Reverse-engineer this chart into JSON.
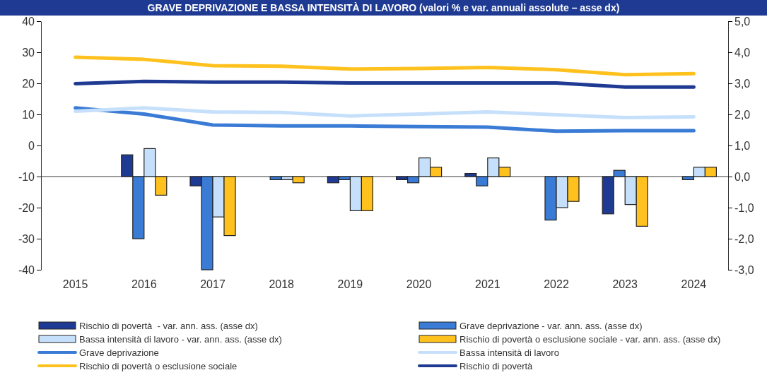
{
  "chart_data": {
    "type": "bar",
    "title": "GRAVE DEPRIVAZIONE E BASSA INTENSITÀ DI LAVORO (valori % e var. annuali assolute – asse dx)",
    "categories": [
      "2015",
      "2016",
      "2017",
      "2018",
      "2019",
      "2020",
      "2021",
      "2022",
      "2023",
      "2024"
    ],
    "series": [
      {
        "name": "Rischio di povertà  - var. ann. ass. (asse dx)",
        "axis": "y2",
        "color": "#1f3a93",
        "values": [
          null,
          0.7,
          -0.3,
          0,
          -0.2,
          -0.1,
          0.1,
          0,
          -1.2,
          0
        ]
      },
      {
        "name": "Grave deprivazione - var. ann. ass. (asse dx)",
        "axis": "y2",
        "color": "#3a7bd5",
        "values": [
          null,
          -2.0,
          -3.0,
          -0.1,
          -0.1,
          -0.2,
          -0.3,
          -1.4,
          0.2,
          -0.1
        ]
      },
      {
        "name": "Bassa intensità di lavoro - var. ann. ass. (asse dx)",
        "axis": "y2",
        "color": "#c6e0fb",
        "values": [
          null,
          0.9,
          -1.3,
          -0.1,
          -1.1,
          0.6,
          0.6,
          -1.0,
          -0.9,
          0.3
        ]
      },
      {
        "name": "Rischio di povertà o esclusione sociale - var. ann. ass. (asse dx)",
        "axis": "y2",
        "color": "#ffc11e",
        "values": [
          null,
          -0.6,
          -1.9,
          -0.2,
          -1.1,
          0.3,
          0.3,
          -0.8,
          -1.6,
          0.3
        ]
      },
      {
        "name": "Grave deprivazione",
        "type": "line",
        "color": "#3a7bd5",
        "values": [
          12.1,
          10.1,
          6.6,
          6.3,
          6.3,
          6.1,
          5.9,
          4.6,
          4.8,
          4.8
        ]
      },
      {
        "name": "Bassa intensità di lavoro",
        "type": "line",
        "color": "#c6e0fb",
        "values": [
          11.0,
          12.1,
          10.8,
          10.6,
          9.5,
          10.1,
          10.8,
          9.9,
          9.0,
          9.2
        ]
      },
      {
        "name": "Rischio di povertà o esclusione sociale",
        "type": "line",
        "color": "#ffc11e",
        "values": [
          28.4,
          27.7,
          25.7,
          25.5,
          24.6,
          24.8,
          25.1,
          24.4,
          22.8,
          23.1
        ]
      },
      {
        "name": "Rischio di povertà",
        "type": "line",
        "color": "#1f3a93",
        "values": [
          19.9,
          20.6,
          20.4,
          20.4,
          20.1,
          20.1,
          20.1,
          20.1,
          18.8,
          18.8
        ]
      }
    ],
    "ylim": [
      -40,
      40
    ],
    "yticks": [
      -40,
      -30,
      -20,
      -10,
      0,
      10,
      20,
      30,
      40
    ],
    "y2lim": [
      -3,
      5
    ],
    "y2ticks": [
      {
        "value": -3,
        "label": "-3,0"
      },
      {
        "value": -2,
        "label": "-2,0"
      },
      {
        "value": -1,
        "label": "-1,0"
      },
      {
        "value": 0,
        "label": "0,0"
      },
      {
        "value": 1,
        "label": "1,0"
      },
      {
        "value": 2,
        "label": "2,0"
      },
      {
        "value": 3,
        "label": "3,0"
      },
      {
        "value": 4,
        "label": "4,0"
      },
      {
        "value": 5,
        "label": "5,0"
      }
    ],
    "ref_lines": [
      {
        "axis": "y2",
        "value": 0
      }
    ],
    "legend": "bottom"
  }
}
